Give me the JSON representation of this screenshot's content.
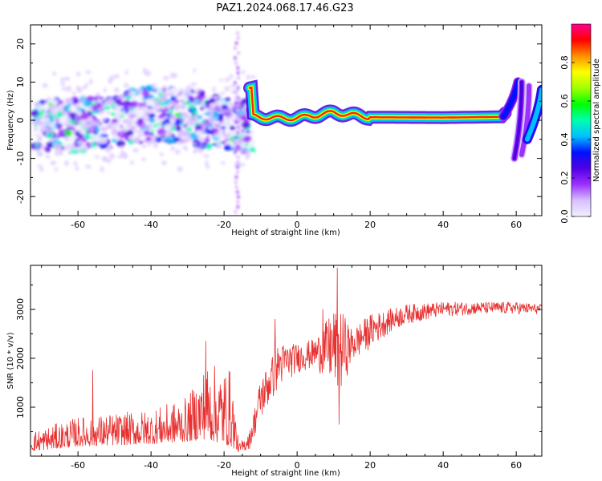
{
  "title": "PAZ1.2024.068.17.46.G23",
  "chart_data": [
    {
      "type": "heatmap",
      "title": "",
      "xlabel": "Height of straight line (km)",
      "ylabel": "Frequency (Hz)",
      "xlim": [
        -73,
        67
      ],
      "ylim": [
        -25,
        25
      ],
      "xticks": [
        -60,
        -40,
        -20,
        0,
        20,
        40,
        60
      ],
      "yticks": [
        -20,
        -10,
        0,
        10,
        20
      ],
      "ridge": {
        "description_points": [
          {
            "x": -12,
            "y": 1.0
          },
          {
            "x": -5,
            "y": 0.5
          },
          {
            "x": 0,
            "y": 0.6
          },
          {
            "x": 10,
            "y": 2.0
          },
          {
            "x": 20,
            "y": 0.8
          },
          {
            "x": 40,
            "y": 0.7
          },
          {
            "x": 56,
            "y": 0.9
          },
          {
            "x": 59,
            "y": 4.0
          },
          {
            "x": 61,
            "y": 8.0
          }
        ]
      },
      "colorbar": {
        "label": "Normalized spectral amplitude",
        "ticks": [
          0.0,
          0.2,
          0.4,
          0.6,
          0.8
        ],
        "range": [
          0,
          1
        ],
        "colormap": [
          "#f0f0ff",
          "#d8c0ff",
          "#9b30ff",
          "#5000e0",
          "#0010ff",
          "#00c0ff",
          "#00ffb0",
          "#00ff00",
          "#a0ff00",
          "#ffff00",
          "#ff9000",
          "#ff0000",
          "#ff0090"
        ]
      }
    },
    {
      "type": "line",
      "title": "",
      "xlabel": "Height of straight line (km)",
      "ylabel": "SNR (10 * v/v)",
      "xlim": [
        -73,
        67
      ],
      "ylim": [
        0,
        3900
      ],
      "xticks": [
        -60,
        -40,
        -20,
        0,
        20,
        40,
        60
      ],
      "yticks": [
        1000,
        2000,
        3000
      ],
      "color": "#e83030",
      "envelope": [
        {
          "x": -73,
          "low": 100,
          "high": 500
        },
        {
          "x": -60,
          "low": 200,
          "high": 800
        },
        {
          "x": -40,
          "low": 250,
          "high": 950
        },
        {
          "x": -30,
          "low": 300,
          "high": 1200
        },
        {
          "x": -25,
          "low": 350,
          "high": 1900
        },
        {
          "x": -18,
          "low": 200,
          "high": 1800
        },
        {
          "x": -16,
          "low": 80,
          "high": 250
        },
        {
          "x": -13,
          "low": 150,
          "high": 500
        },
        {
          "x": -10,
          "low": 700,
          "high": 1600
        },
        {
          "x": -5,
          "low": 1400,
          "high": 2300
        },
        {
          "x": 0,
          "low": 1700,
          "high": 2300
        },
        {
          "x": 5,
          "low": 1800,
          "high": 2400
        },
        {
          "x": 10,
          "low": 1400,
          "high": 3000
        },
        {
          "x": 12,
          "low": 1300,
          "high": 3000
        },
        {
          "x": 15,
          "low": 1900,
          "high": 2600
        },
        {
          "x": 20,
          "low": 2200,
          "high": 2900
        },
        {
          "x": 25,
          "low": 2500,
          "high": 3000
        },
        {
          "x": 30,
          "low": 2700,
          "high": 3100
        },
        {
          "x": 40,
          "low": 2850,
          "high": 3150
        },
        {
          "x": 50,
          "low": 2900,
          "high": 3150
        },
        {
          "x": 60,
          "low": 2900,
          "high": 3150
        },
        {
          "x": 67,
          "low": 2900,
          "high": 3100
        }
      ],
      "spikes": [
        {
          "x": 11,
          "y": 3850
        },
        {
          "x": 11.5,
          "y": 650
        },
        {
          "x": -25,
          "y": 2350
        },
        {
          "x": -56,
          "y": 1750
        },
        {
          "x": -6,
          "y": 2800
        },
        {
          "x": 7,
          "y": 3000
        }
      ]
    }
  ]
}
